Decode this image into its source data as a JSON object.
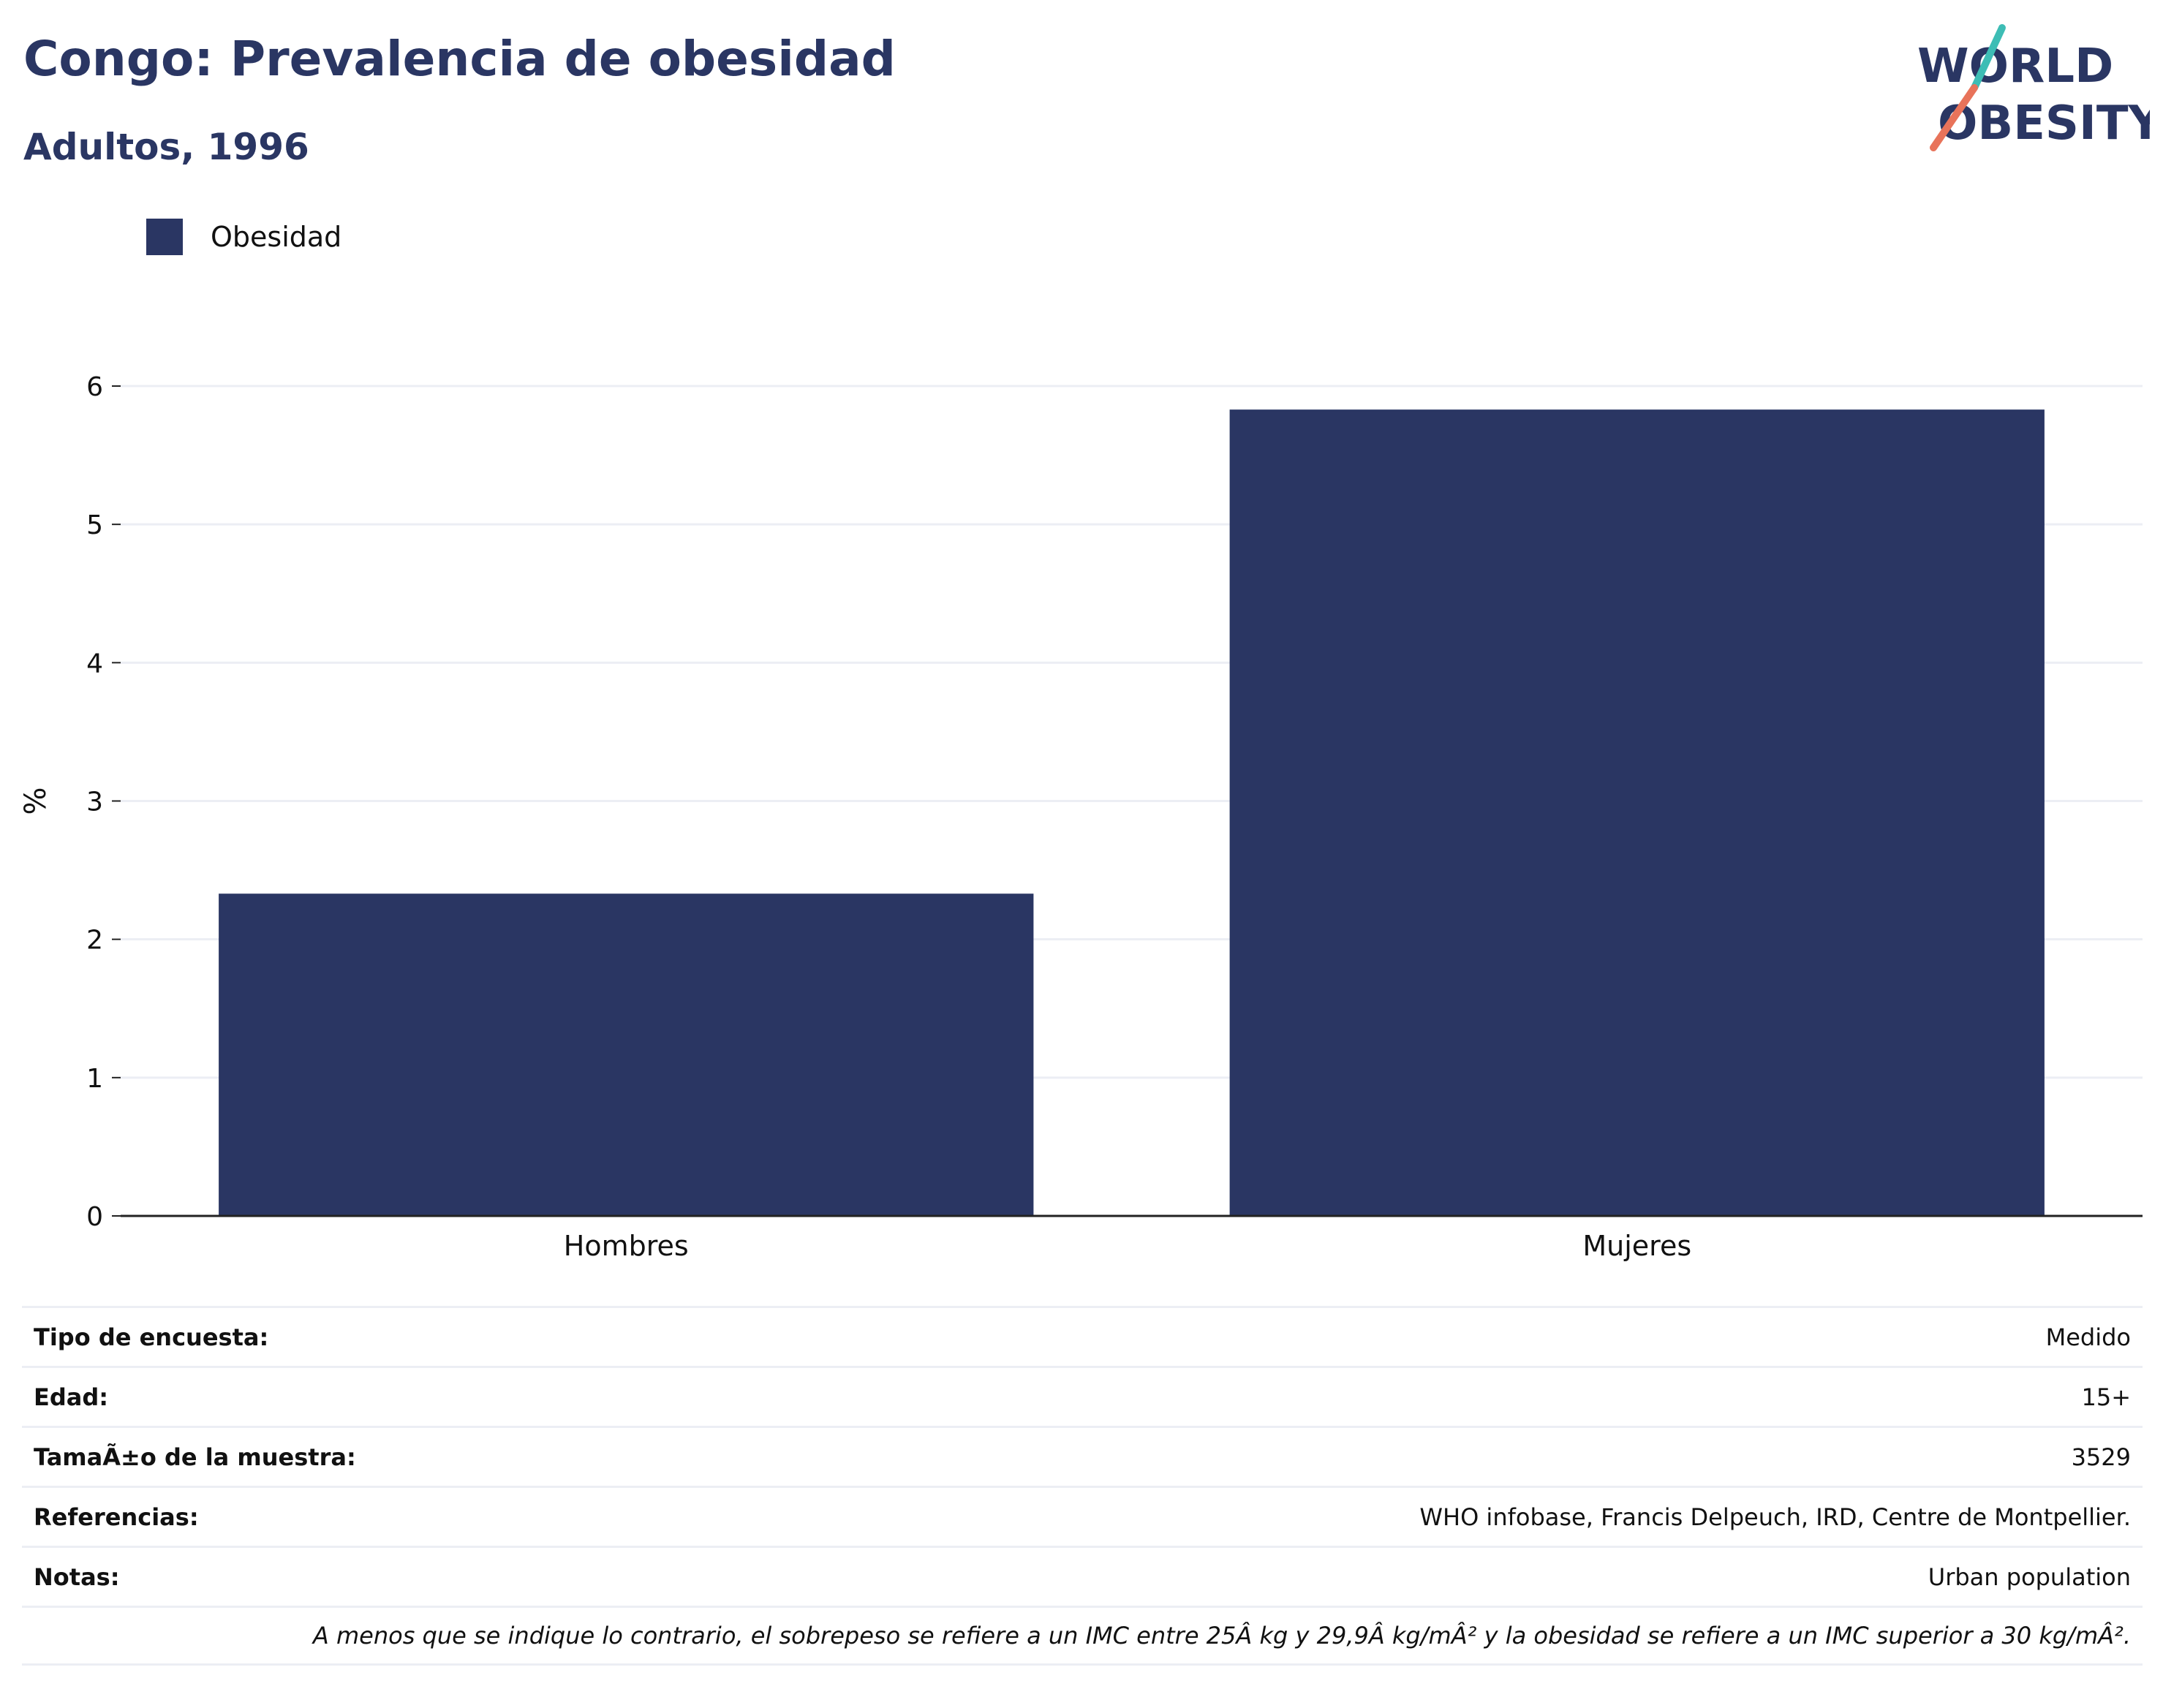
{
  "header": {
    "title": "Congo: Prevalencia de obesidad",
    "subtitle": "Adultos, 1996"
  },
  "logo": {
    "line1": "WORLD",
    "line2": "OBESITY",
    "colors": {
      "text": "#2a3663",
      "slash_top": "#3dbdb5",
      "slash_bottom": "#e8735a"
    }
  },
  "chart_data": {
    "type": "bar",
    "categories": [
      "Hombres",
      "Mujeres"
    ],
    "series": [
      {
        "name": "Obesidad",
        "values": [
          2.33,
          5.83
        ],
        "color": "#2a3663"
      }
    ],
    "xlabel": "",
    "ylabel": "%",
    "ylim": [
      0,
      6
    ],
    "yticks": [
      0,
      1,
      2,
      3,
      4,
      5,
      6
    ],
    "grid": true,
    "legend_position": "top-left"
  },
  "info_table": {
    "rows": [
      {
        "label": "Tipo de encuesta:",
        "value": "Medido"
      },
      {
        "label": "Edad:",
        "value": "15+"
      },
      {
        "label": "TamaÃ±o de la muestra:",
        "value": "3529"
      },
      {
        "label": "Referencias:",
        "value": "WHO infobase, Francis Delpeuch, IRD, Centre de Montpellier."
      },
      {
        "label": "Notas:",
        "value": "Urban population"
      }
    ],
    "footnote": "A menos que se indique lo contrario, el sobrepeso se refiere a un IMC entre 25Â kg y 29,9Â kg/mÂ² y la obesidad se refiere a un IMC superior a 30 kg/mÂ²."
  }
}
